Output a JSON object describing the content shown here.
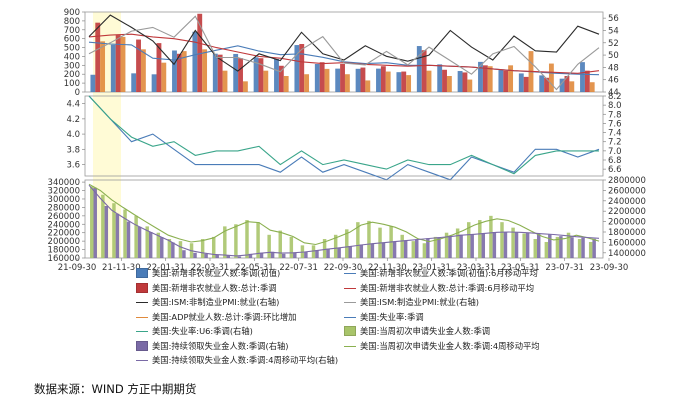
{
  "chart_data": {
    "type": "composite",
    "x_ticks": [
      "21-09-30",
      "21-11-30",
      "22-01-31",
      "22-03-31",
      "22-05-31",
      "22-07-31",
      "22-09-30",
      "22-11-30",
      "23-01-31",
      "23-03-31",
      "23-05-31",
      "23-07-31",
      "23-09-30"
    ],
    "highlight": {
      "from": "21-11",
      "to": "21-12",
      "color": "#fffbd6"
    },
    "panels": [
      {
        "id": "payrolls",
        "y_left": {
          "ticks": [
            "0",
            "100",
            "200",
            "300",
            "400",
            "500",
            "600",
            "700",
            "800",
            "900"
          ],
          "min": 0,
          "max": 900
        },
        "y_right": {
          "ticks": [
            "44",
            "46",
            "48",
            "50",
            "52",
            "54",
            "56"
          ],
          "min": 44,
          "max": 57
        },
        "series": [
          {
            "name": "美国:新增非农就业人数:季调(初值)",
            "kind": "bar",
            "axis": "left",
            "color": "#4a7cb8",
            "values": [
              194,
              531,
              210,
              199,
              467,
              678,
              431,
              428,
              390,
              372,
              528,
              315,
              263,
              261,
              263,
              223,
              517,
              311,
              236,
              339,
              253,
              209,
              187,
              150,
              336
            ]
          },
          {
            "name": "美国:新增非农就业人数:总计:季调",
            "kind": "bar",
            "axis": "left",
            "color": "#c0393b",
            "values": [
              780,
              640,
              590,
              550,
              430,
              880,
              420,
              380,
              380,
              295,
              540,
              335,
              315,
              275,
              290,
              230,
              470,
              250,
              220,
              300,
              240,
              170,
              160,
              180,
              240
            ]
          },
          {
            "name": "美国:ADP就业人数:总计:季调:环比增加",
            "kind": "bar",
            "axis": "left",
            "color": "#e08a3c",
            "values": [
              570,
              620,
              480,
              330,
              460,
              480,
              240,
              120,
              240,
              180,
              200,
              260,
              200,
              130,
              230,
              190,
              240,
              180,
              140,
              290,
              300,
              460,
              320,
              120,
              110
            ]
          },
          {
            "name": "美国:新增非农就业人数:季调(初值):6月移动平均",
            "kind": "line",
            "axis": "left",
            "color": "#4a7cb8",
            "values": [
              560,
              540,
              530,
              380,
              360,
              420,
              470,
              520,
              460,
              420,
              430,
              390,
              340,
              320,
              330,
              300,
              300,
              290,
              280,
              260,
              240,
              225,
              210,
              200,
              195
            ]
          },
          {
            "name": "美国:新增非农就业人数:总计:季调:6月移动平均",
            "kind": "line",
            "axis": "left",
            "color": "#c0393b",
            "values": [
              620,
              640,
              650,
              620,
              600,
              560,
              500,
              450,
              400,
              380,
              340,
              320,
              330,
              310,
              300,
              290,
              300,
              290,
              280,
              260,
              240,
              230,
              220,
              210,
              240
            ]
          },
          {
            "name": "美国:ISM:非制造业PMI:就业(右轴)",
            "kind": "line",
            "axis": "right",
            "color": "#2b2b2b",
            "values": [
              53.0,
              56.5,
              54.5,
              52.3,
              48.5,
              54.0,
              49.7,
              47.4,
              50.2,
              49.1,
              53.7,
              50.2,
              49.2,
              51.5,
              49.8,
              49.0,
              50.0,
              54.0,
              51.3,
              49.2,
              53.1,
              50.7,
              50.5,
              54.7,
              53.4
            ]
          },
          {
            "name": "美国:ISM:制造业PMI:就业(右轴)",
            "kind": "line",
            "axis": "right",
            "color": "#9a9a9a",
            "values": [
              50.2,
              52.0,
              53.9,
              54.5,
              52.9,
              56.3,
              49.6,
              49.6,
              48.6,
              47.3,
              50.9,
              53.0,
              48.7,
              48.4,
              50.6,
              48.4,
              51.3,
              49.1,
              46.9,
              50.2,
              51.4,
              48.1,
              44.4,
              48.5,
              51.2
            ]
          }
        ]
      },
      {
        "id": "unemployment",
        "y_left": {
          "ticks": [
            "3.6",
            "3.8",
            "4.0",
            "4.2",
            "4.4"
          ],
          "min": 3.45,
          "max": 4.5
        },
        "y_right": {
          "ticks": [
            "6.6",
            "6.8",
            "7.0",
            "7.2",
            "7.4",
            "7.6",
            "7.8",
            "8.0",
            "8.2"
          ],
          "min": 6.45,
          "max": 8.2
        },
        "series": [
          {
            "name": "美国:失业率:季调",
            "kind": "line",
            "axis": "left",
            "color": "#4a7cb8",
            "values": [
              4.5,
              4.2,
              3.9,
              4.0,
              3.8,
              3.6,
              3.6,
              3.6,
              3.6,
              3.5,
              3.7,
              3.5,
              3.6,
              3.5,
              3.4,
              3.6,
              3.5,
              3.4,
              3.7,
              3.6,
              3.5,
              3.8,
              3.8,
              3.7,
              3.8
            ]
          },
          {
            "name": "美国:失业率:U6:季调(右轴)",
            "kind": "line",
            "axis": "right",
            "color": "#3aa58a",
            "values": [
              8.2,
              7.7,
              7.3,
              7.1,
              7.2,
              6.9,
              7.0,
              7.0,
              7.1,
              6.7,
              7.0,
              6.7,
              6.8,
              6.7,
              6.6,
              6.8,
              6.7,
              6.7,
              6.9,
              6.7,
              6.5,
              6.9,
              7.0,
              7.0,
              7.0
            ]
          }
        ]
      },
      {
        "id": "claims",
        "y_left": {
          "ticks": [
            "160000",
            "180000",
            "200000",
            "220000",
            "240000",
            "260000",
            "280000",
            "300000",
            "320000",
            "340000"
          ],
          "min": 160000,
          "max": 345000
        },
        "y_right": {
          "ticks": [
            "1400000",
            "1600000",
            "1800000",
            "2000000",
            "2200000",
            "2400000",
            "2600000",
            "2800000"
          ],
          "min": 1300000,
          "max": 2800000
        },
        "series": [
          {
            "name": "美国:当周初次申请失业金人数:季调",
            "kind": "bar",
            "axis": "left",
            "color": "#a8c46a",
            "values": [
              330000,
              310000,
              290000,
              275000,
              260000,
              235000,
              220000,
              205000,
              200000,
              195000,
              205000,
              210000,
              235000,
              240000,
              250000,
              245000,
              215000,
              225000,
              210000,
              190000,
              190000,
              205000,
              215000,
              228000,
              245000,
              248000,
              232000,
              236000,
              215000,
              200000,
              195000,
              210000,
              220000,
              230000,
              245000,
              250000,
              260000,
              245000,
              232000,
              218000,
              205000,
              198000,
              210000,
              220000,
              205000,
              198000
            ]
          },
          {
            "name": "美国:持续领取失业金人数:季调(右轴)",
            "kind": "bar",
            "axis": "right",
            "color": "#7a6aa6",
            "values": [
              2650000,
              2300000,
              2150000,
              2000000,
              1900000,
              1800000,
              1700000,
              1600000,
              1450000,
              1400000,
              1380000,
              1360000,
              1350000,
              1330000,
              1380000,
              1400000,
              1420000,
              1380000,
              1400000,
              1420000,
              1450000,
              1480000,
              1500000,
              1530000,
              1560000,
              1580000,
              1600000,
              1620000,
              1640000,
              1660000,
              1680000,
              1700000,
              1720000,
              1750000,
              1760000,
              1780000,
              1800000,
              1800000,
              1790000,
              1780000,
              1760000,
              1750000,
              1720000,
              1700000,
              1690000,
              1670000
            ]
          },
          {
            "name": "美国:当周初次申请失业金人数:季调:4周移动平均",
            "kind": "line",
            "axis": "left",
            "color": "#8bb050",
            "values": [
              335000,
              320000,
              298000,
              280000,
              263000,
              246000,
              230000,
              214000,
              205000,
              198000,
              201000,
              208000,
              224000,
              235000,
              246000,
              244000,
              226000,
              220000,
              211000,
              196000,
              192000,
              200000,
              210000,
              221000,
              238000,
              245000,
              240000,
              233000,
              222000,
              206000,
              199000,
              205000,
              214000,
              225000,
              238000,
              247000,
              253000,
              249000,
              238000,
              224000,
              211000,
              203000,
              206000,
              214000,
              208000,
              200000
            ]
          },
          {
            "name": "美国:持续领取失业金人数:季调:4周移动平均(右轴)",
            "kind": "line",
            "axis": "right",
            "color": "#7a6aa6",
            "values": [
              2700000,
              2450000,
              2220000,
              2080000,
              1950000,
              1840000,
              1740000,
              1640000,
              1520000,
              1440000,
              1400000,
              1370000,
              1355000,
              1340000,
              1360000,
              1390000,
              1410000,
              1395000,
              1400000,
              1415000,
              1440000,
              1470000,
              1495000,
              1520000,
              1550000,
              1575000,
              1595000,
              1615000,
              1635000,
              1655000,
              1675000,
              1695000,
              1715000,
              1740000,
              1755000,
              1775000,
              1795000,
              1800000,
              1795000,
              1782000,
              1765000,
              1752000,
              1730000,
              1710000,
              1695000,
              1678000
            ]
          }
        ]
      }
    ]
  },
  "legend": [
    {
      "label": "美国:新增非农就业人数:季调(初值)",
      "symbol": "box",
      "color": "#4a7cb8"
    },
    {
      "label": "美国:新增非农就业人数:季调(初值):6月移动平均",
      "symbol": "line",
      "color": "#4a7cb8"
    },
    {
      "label": "美国:新增非农就业人数:总计:季调",
      "symbol": "box",
      "color": "#c0393b"
    },
    {
      "label": "美国:新增非农就业人数:总计:季调:6月移动平均",
      "symbol": "line",
      "color": "#c0393b"
    },
    {
      "label": "美国:ISM:非制造业PMI:就业(右轴)",
      "symbol": "line",
      "color": "#2b2b2b"
    },
    {
      "label": "美国:ISM:制造业PMI:就业(右轴)",
      "symbol": "line",
      "color": "#9a9a9a"
    },
    {
      "label": "美国:ADP就业人数:总计:季调:环比增加",
      "symbol": "line",
      "color": "#e08a3c"
    },
    {
      "label": "美国:失业率:季调",
      "symbol": "line",
      "color": "#4a7cb8"
    },
    {
      "label": "美国:失业率:U6:季调(右轴)",
      "symbol": "line",
      "color": "#3aa58a"
    },
    {
      "label": "美国:当周初次申请失业金人数:季调",
      "symbol": "box",
      "color": "#a8c46a"
    },
    {
      "label": "美国:持续领取失业金人数:季调(右轴)",
      "symbol": "box",
      "color": "#7a6aa6"
    },
    {
      "label": "美国:当周初次申请失业金人数:季调:4周移动平均",
      "symbol": "line",
      "color": "#8bb050"
    },
    {
      "label": "美国:持续领取失业金人数:季调:4周移动平均(右轴)",
      "symbol": "line",
      "color": "#7a6aa6"
    }
  ],
  "source": "数据来源：WIND 方正中期期货"
}
